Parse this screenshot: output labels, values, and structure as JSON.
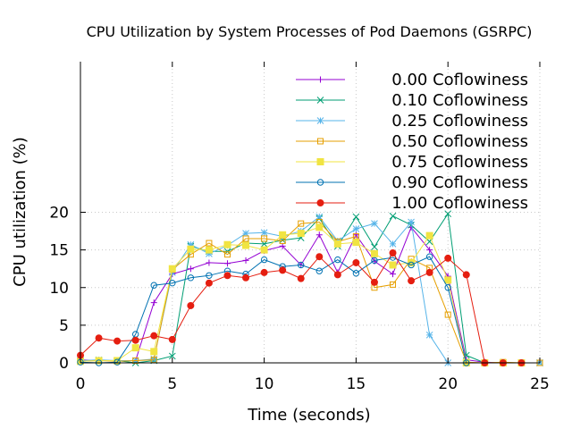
{
  "chart_data": {
    "type": "line",
    "title": "CPU Utilization by System Processes of Pod Daemons (GSRPC)",
    "xlabel": "Time (seconds)",
    "ylabel": "CPU utilization (%)",
    "xlim": [
      0,
      25
    ],
    "ylim": [
      0,
      40
    ],
    "xticks": [
      0,
      5,
      10,
      15,
      20,
      25
    ],
    "yticks": [
      0,
      5,
      10,
      15,
      20
    ],
    "xtick_labels": [
      "0",
      "5",
      "10",
      "15",
      "20",
      "25"
    ],
    "ytick_labels": [
      "0",
      "5",
      "10",
      "15",
      "20"
    ],
    "grid": true,
    "legend_position": "top-right",
    "series": [
      {
        "name": "0.00 Coflowiness",
        "color": "#9400d3",
        "marker": "plus",
        "x": [
          0,
          1,
          2,
          3,
          4,
          5,
          6,
          7,
          8,
          9,
          10,
          11,
          12,
          13,
          14,
          15,
          16,
          17,
          18,
          19,
          20,
          21,
          22,
          23,
          24,
          25
        ],
        "y": [
          0.4,
          0.3,
          0.3,
          0.3,
          8.0,
          11.8,
          12.5,
          13.3,
          13.2,
          13.6,
          14.9,
          15.5,
          13.0,
          17.0,
          12.0,
          17.0,
          13.5,
          11.8,
          18.0,
          15.0,
          11.5,
          0.4,
          0.1,
          0.0,
          0.0,
          0.0
        ]
      },
      {
        "name": "0.10 Coflowiness",
        "color": "#009e73",
        "marker": "x",
        "x": [
          0,
          1,
          2,
          3,
          4,
          5,
          6,
          7,
          8,
          9,
          10,
          11,
          12,
          13,
          14,
          15,
          16,
          17,
          18,
          19,
          20,
          21,
          22,
          23,
          24,
          25
        ],
        "y": [
          0.3,
          0.3,
          0.3,
          0.0,
          0.3,
          0.9,
          15.5,
          14.8,
          14.8,
          15.9,
          15.8,
          16.3,
          16.6,
          19.2,
          15.5,
          19.4,
          15.4,
          19.5,
          18.3,
          16.1,
          19.8,
          1.0,
          0.0,
          0.0,
          0.0,
          0.0
        ]
      },
      {
        "name": "0.25 Coflowiness",
        "color": "#56b4e9",
        "marker": "star",
        "x": [
          0,
          1,
          2,
          3,
          4,
          5,
          6,
          7,
          8,
          9,
          10,
          11,
          12,
          13,
          14,
          15,
          16,
          17,
          18,
          19,
          20,
          21,
          22,
          23,
          24,
          25
        ],
        "y": [
          0.3,
          0.4,
          0.3,
          0.3,
          0.5,
          12.0,
          15.7,
          14.5,
          15.6,
          17.2,
          17.3,
          16.8,
          17.5,
          19.4,
          16.2,
          17.8,
          18.5,
          15.8,
          18.7,
          3.7,
          0.0,
          0.0,
          0.0,
          0.0,
          0.0,
          0.0
        ]
      },
      {
        "name": "0.50 Coflowiness",
        "color": "#e69f00",
        "marker": "square",
        "x": [
          0,
          1,
          2,
          3,
          4,
          5,
          6,
          7,
          8,
          9,
          10,
          11,
          12,
          13,
          14,
          15,
          16,
          17,
          18,
          19,
          20,
          21,
          22,
          23,
          24,
          25
        ],
        "y": [
          0.2,
          0.3,
          0.2,
          0.3,
          0.4,
          12.4,
          14.4,
          15.9,
          14.4,
          16.5,
          16.5,
          16.2,
          18.5,
          18.7,
          16.1,
          16.8,
          10.0,
          10.4,
          13.8,
          12.6,
          6.4,
          0.1,
          0.0,
          0.1,
          0.0,
          0.0
        ]
      },
      {
        "name": "0.75 Coflowiness",
        "color": "#f0e442",
        "marker": "filled-square",
        "x": [
          0,
          1,
          2,
          3,
          4,
          5,
          6,
          7,
          8,
          9,
          10,
          11,
          12,
          13,
          14,
          15,
          16,
          17,
          18,
          19,
          20,
          21,
          22,
          23,
          24
        ],
        "y": [
          0.2,
          0.3,
          0.3,
          2.0,
          1.5,
          12.5,
          15.1,
          15.0,
          15.7,
          15.6,
          15.0,
          17.0,
          17.2,
          18.0,
          15.8,
          16.0,
          14.5,
          13.0,
          13.3,
          16.9,
          11.0,
          0.0,
          0.0,
          0.0,
          0.0
        ]
      },
      {
        "name": "0.90 Coflowiness",
        "color": "#0072b2",
        "marker": "circle",
        "x": [
          0,
          1,
          2,
          3,
          4,
          5,
          6,
          7,
          8,
          9,
          10,
          11,
          12,
          13,
          14,
          15,
          16,
          17,
          18,
          19,
          20,
          21,
          22,
          23,
          24
        ],
        "y": [
          0.1,
          0.0,
          0.1,
          3.8,
          10.3,
          10.6,
          11.3,
          11.6,
          12.2,
          11.8,
          13.7,
          12.8,
          13.0,
          12.2,
          13.7,
          11.9,
          13.6,
          14.0,
          13.0,
          14.1,
          10.0,
          0.0,
          0.0,
          0.0,
          0.0
        ]
      },
      {
        "name": "1.00 Coflowiness",
        "color": "#e51e10",
        "marker": "filled-circle",
        "x": [
          0,
          1,
          2,
          3,
          4,
          5,
          6,
          7,
          8,
          9,
          10,
          11,
          12,
          13,
          14,
          15,
          16,
          17,
          18,
          19,
          20,
          21,
          22,
          23,
          24
        ],
        "y": [
          1.0,
          3.3,
          2.9,
          3.0,
          3.6,
          3.1,
          7.6,
          10.6,
          11.6,
          11.3,
          12.0,
          12.3,
          11.2,
          14.1,
          11.7,
          13.3,
          10.7,
          14.6,
          10.9,
          12.0,
          13.9,
          11.7,
          0.0,
          0.0,
          0.0
        ]
      }
    ]
  }
}
